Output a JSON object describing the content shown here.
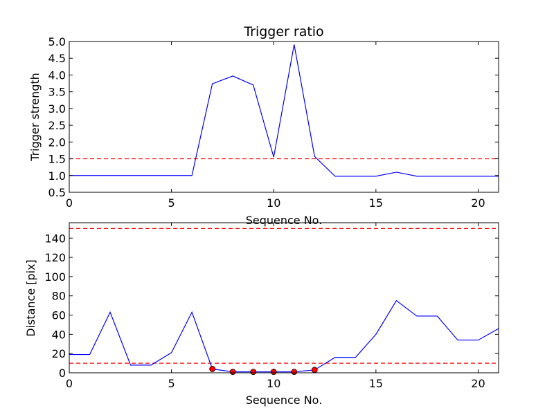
{
  "chart_data": [
    {
      "type": "line",
      "title": "Trigger ratio",
      "xlabel": "Sequence No.",
      "ylabel": "Trigger strength",
      "xlim": [
        0,
        21
      ],
      "ylim": [
        0.5,
        5.0
      ],
      "xticks": [
        "0",
        "5",
        "10",
        "15",
        "20"
      ],
      "yticks": [
        "0.5",
        "1.0",
        "1.5",
        "2.0",
        "2.5",
        "3.0",
        "3.5",
        "4.0",
        "4.5",
        "5.0"
      ],
      "grid": false,
      "series": [
        {
          "x": [
            0,
            1,
            2,
            3,
            4,
            5,
            6,
            7,
            8,
            9,
            10,
            11,
            12,
            13,
            14,
            15,
            16,
            17,
            18,
            19,
            20,
            21
          ],
          "values": [
            1.0,
            1.0,
            1.0,
            1.0,
            1.0,
            1.0,
            1.0,
            3.74,
            3.97,
            3.7,
            1.55,
            4.91,
            1.57,
            0.98,
            0.98,
            0.98,
            1.1,
            0.98,
            0.98,
            0.98,
            0.98,
            0.98
          ],
          "color": "#0000ff",
          "style": "solid"
        }
      ],
      "hlines": [
        {
          "y": 1.5,
          "color": "#ff0000",
          "style": "dashed"
        }
      ]
    },
    {
      "type": "line",
      "title": "",
      "xlabel": "Sequence No.",
      "ylabel": "Distance [pix]",
      "xlim": [
        0,
        21
      ],
      "ylim": [
        0,
        156
      ],
      "xticks": [
        "0",
        "5",
        "10",
        "15",
        "20"
      ],
      "yticks": [
        "0",
        "20",
        "40",
        "60",
        "80",
        "100",
        "120",
        "140"
      ],
      "grid": false,
      "series": [
        {
          "x": [
            0,
            1,
            2,
            3,
            4,
            5,
            6,
            7,
            8,
            9,
            10,
            11,
            12,
            13,
            14,
            15,
            16,
            17,
            18,
            19,
            20,
            21
          ],
          "values": [
            19,
            19,
            63,
            8,
            8,
            21,
            63,
            4,
            1,
            1,
            1,
            1,
            3,
            16,
            16,
            40,
            75,
            59,
            59,
            34,
            34,
            46
          ],
          "color": "#0000ff",
          "style": "solid"
        }
      ],
      "markers": {
        "x": [
          7,
          8,
          9,
          10,
          11,
          12
        ],
        "values": [
          4,
          1,
          1,
          1,
          1,
          3
        ],
        "color": "#ff0000"
      },
      "hlines": [
        {
          "y": 150,
          "color": "#ff0000",
          "style": "dashed"
        },
        {
          "y": 10,
          "color": "#ff0000",
          "style": "dashed"
        }
      ]
    }
  ]
}
